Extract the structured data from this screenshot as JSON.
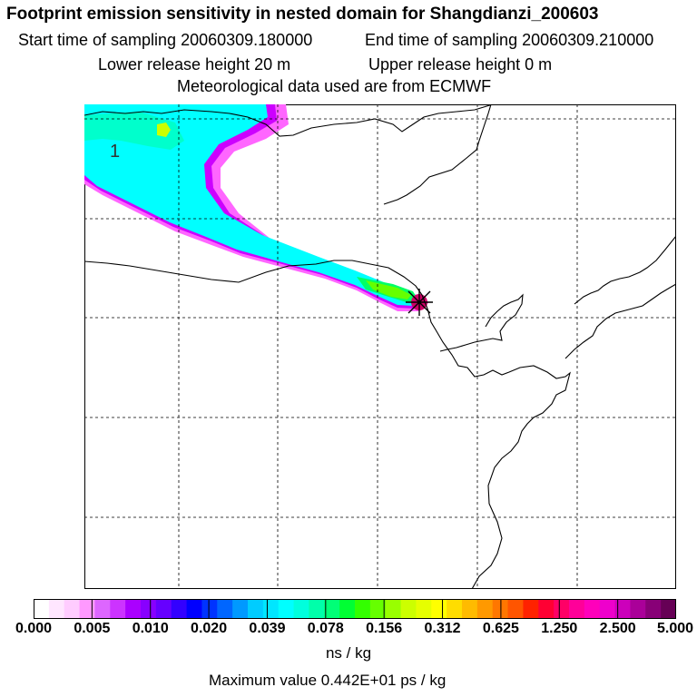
{
  "header": {
    "title": "Footprint emission sensitivity in nested domain for Shangdianzi_200603",
    "start_time": "Start time of sampling 20060309.180000",
    "end_time": "End time of sampling 20060309.210000",
    "lower_height": "Lower release height   20 m",
    "upper_height": "Upper release height    0 m",
    "met_data": "Meteorological data used are from ECMWF"
  },
  "map": {
    "region_label": "1",
    "plume_colors": [
      "#ff66ff",
      "#cc00ff",
      "#00ffff",
      "#00ffcc",
      "#00ff66",
      "#66ff00",
      "#ccff00"
    ],
    "receptor_color": "#cc0066"
  },
  "colorbar": {
    "colors": [
      "#ffffff",
      "#ffe6ff",
      "#ffccff",
      "#ff99ff",
      "#dd66ff",
      "#cc33ff",
      "#aa00ff",
      "#8800ff",
      "#6600ff",
      "#3300ff",
      "#0000ff",
      "#0033ff",
      "#0066ff",
      "#0099ff",
      "#00ccff",
      "#00e6ff",
      "#00ffff",
      "#00ffdd",
      "#00ffaa",
      "#00ff77",
      "#00ff33",
      "#33ff00",
      "#66ff00",
      "#99ff00",
      "#ccff00",
      "#e6ff00",
      "#ffff00",
      "#ffdd00",
      "#ffbb00",
      "#ff9900",
      "#ff7700",
      "#ff5500",
      "#ff2200",
      "#ff0033",
      "#ff0066",
      "#ff0099",
      "#ff00bb",
      "#ee00cc",
      "#cc00bb",
      "#aa0099",
      "#880077",
      "#660055"
    ],
    "ticks": [
      "0.000",
      "0.005",
      "0.010",
      "0.020",
      "0.039",
      "0.078",
      "0.156",
      "0.312",
      "0.625",
      "1.250",
      "2.500",
      "5.000"
    ],
    "units": "ns / kg",
    "max_value": "Maximum value  0.442E+01 ps / kg"
  }
}
